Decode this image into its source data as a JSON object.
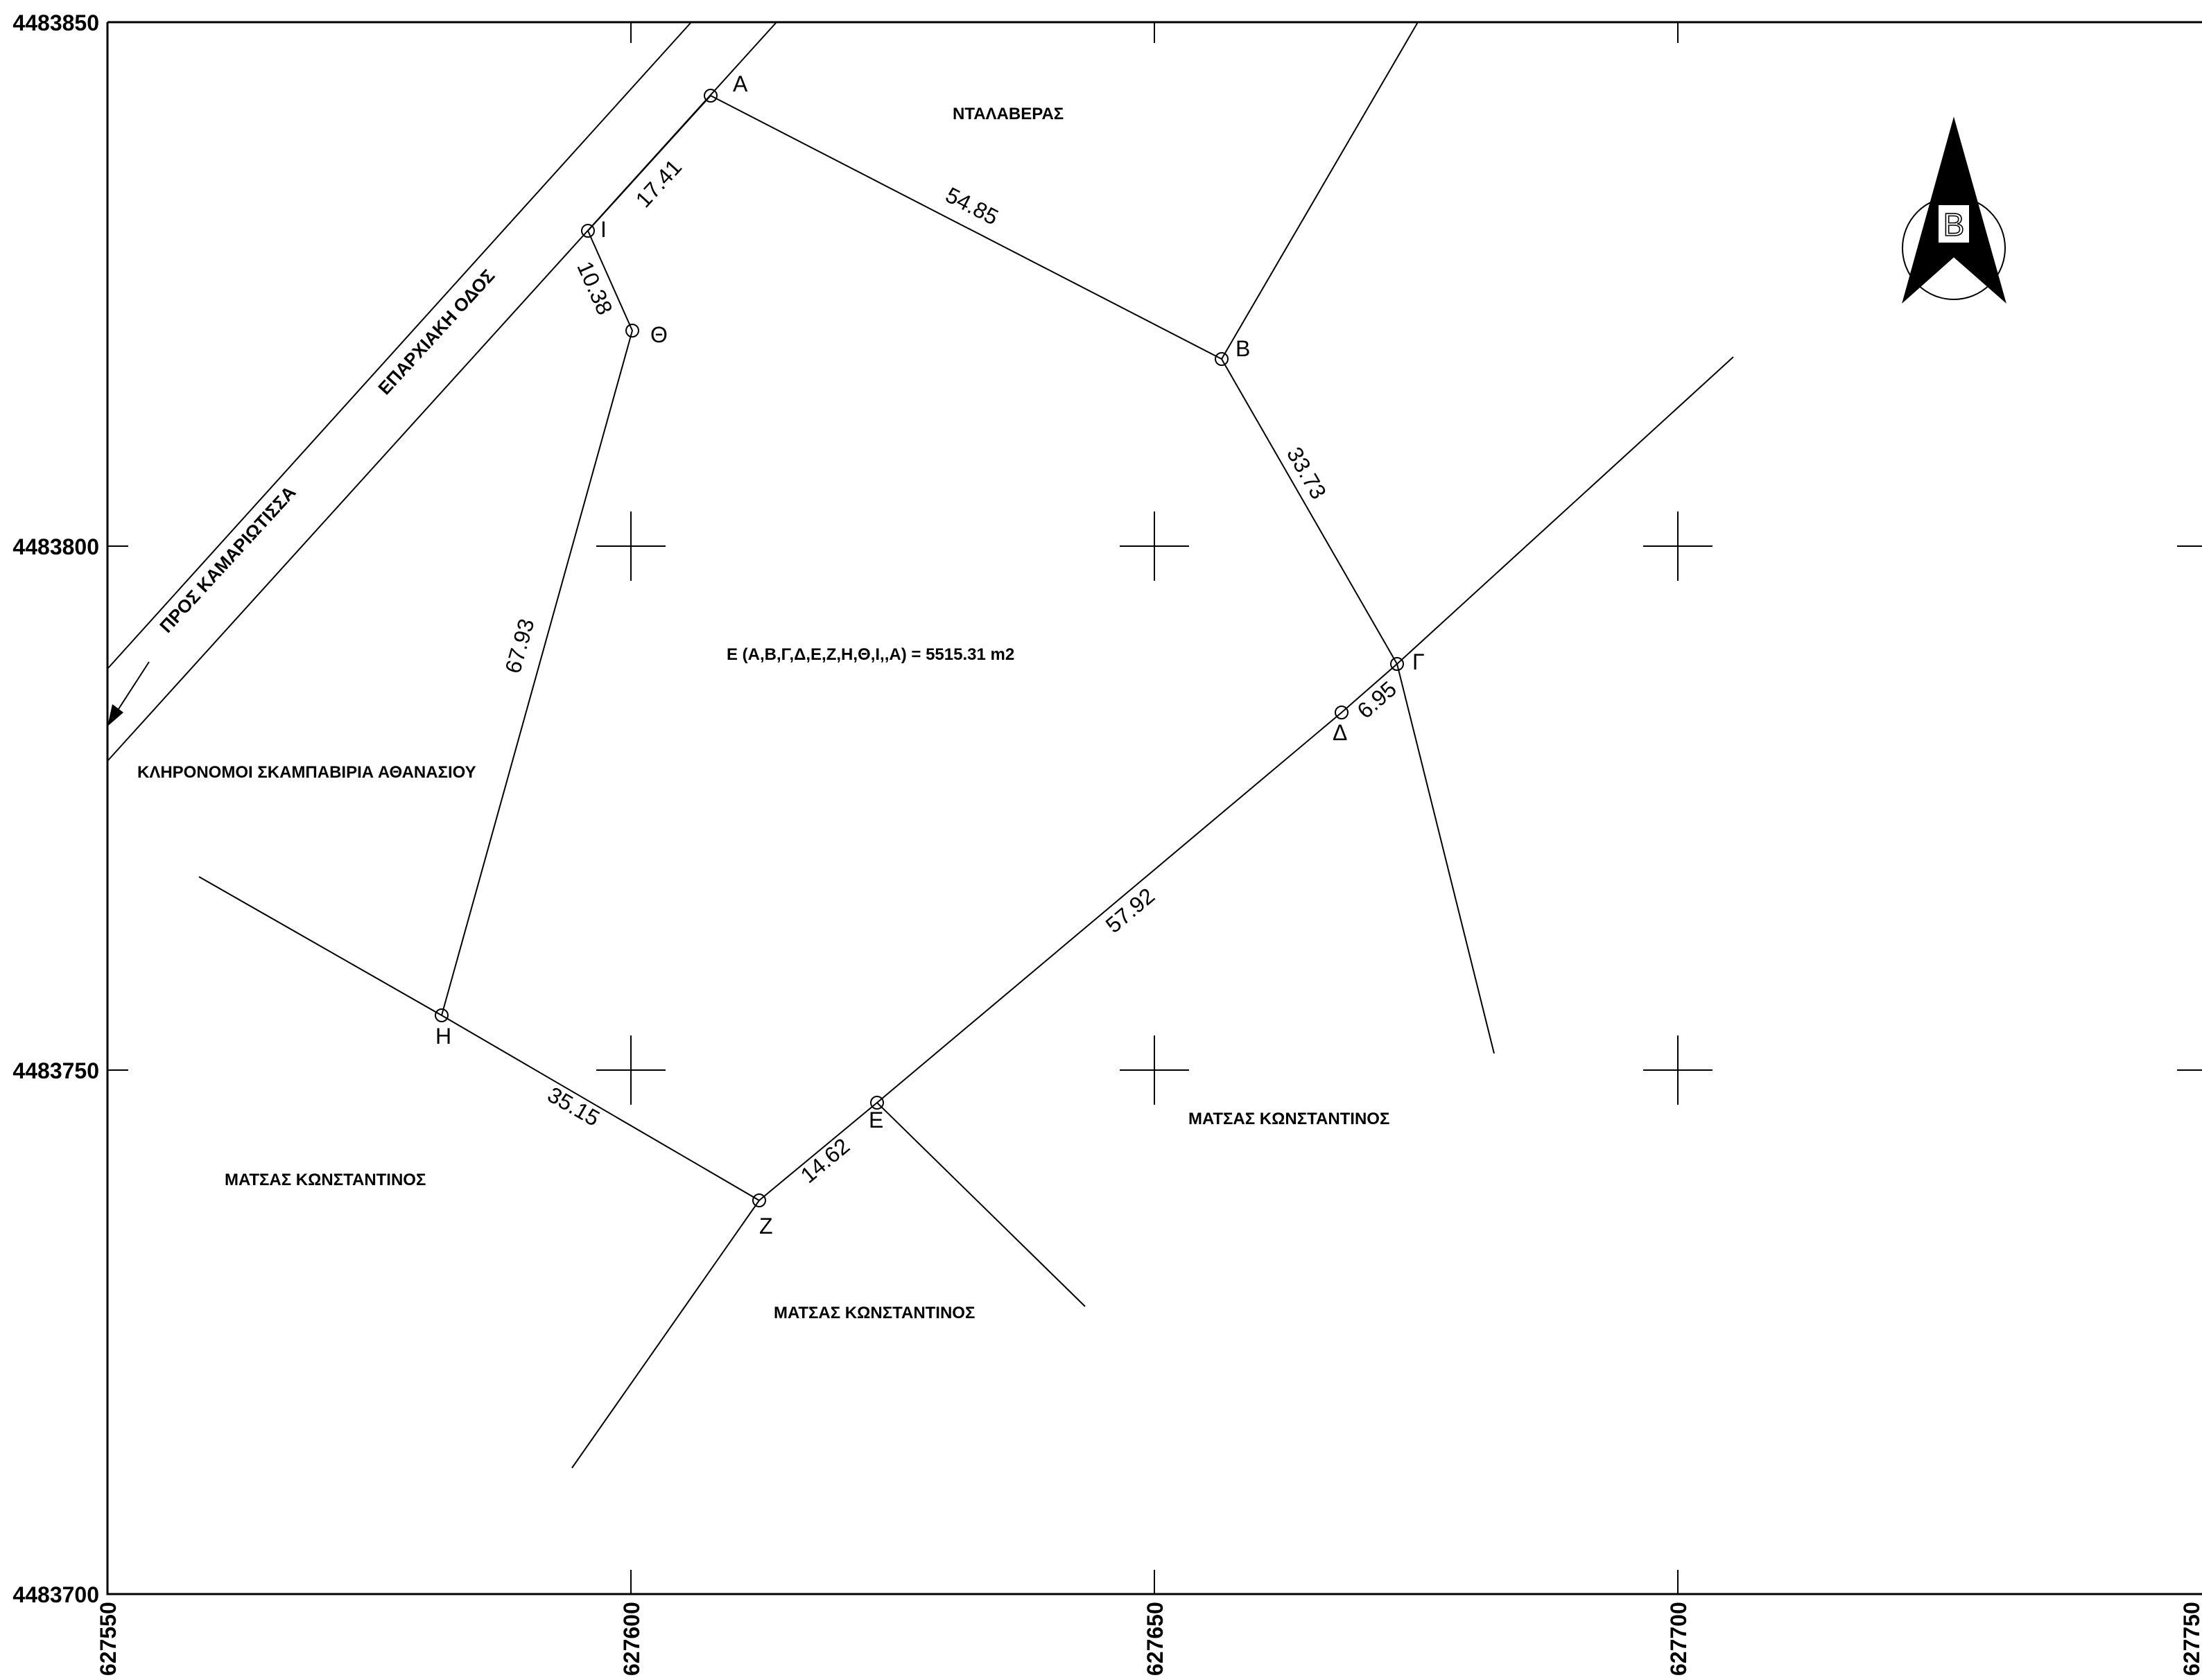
{
  "map": {
    "x_axis_labels": [
      "627550",
      "627600",
      "627650",
      "627700",
      "627750"
    ],
    "y_axis_labels": [
      "4483850",
      "4483800",
      "4483750",
      "4483700"
    ],
    "vertices": [
      {
        "id": "A",
        "label": "Α"
      },
      {
        "id": "I",
        "label": "Ι"
      },
      {
        "id": "TH",
        "label": "Θ"
      },
      {
        "id": "B",
        "label": "Β"
      },
      {
        "id": "G",
        "label": "Γ"
      },
      {
        "id": "D",
        "label": "Δ"
      },
      {
        "id": "E",
        "label": "Ε"
      },
      {
        "id": "Z",
        "label": "Ζ"
      },
      {
        "id": "H",
        "label": "Η"
      }
    ],
    "distances": {
      "AB": "54.85",
      "BG": "33.73",
      "GD": "6.95",
      "DE": "57.92",
      "EZ": "14.62",
      "ZH": "35.15",
      "HTH": "67.93",
      "THI": "10.38",
      "IA": "17.41"
    },
    "area_label": "Ε (Α,Β,Γ,Δ,Ε,Ζ,Η,Θ,Ι,,Α) = 5515.31 m2",
    "owners": {
      "north": "ΝΤΑΛΑΒΕΡΑΣ",
      "west": "ΚΛΗΡΟΝΟΜΟΙ ΣΚΑΜΠΑΒΙΡΙΑ ΑΘΑΝΑΣΙΟΥ",
      "southwest": "ΜΑΤΣΑΣ ΚΩΝΣΤΑΝΤΙΝΟΣ",
      "south": "ΜΑΤΣΑΣ ΚΩΝΣΤΑΝΤΙΝΟΣ",
      "southeast": "ΜΑΤΣΑΣ ΚΩΝΣΤΑΝΤΙΝΟΣ"
    },
    "road": {
      "name": "ΕΠΑΡΧΙΑΚΗ ΟΔΟΣ",
      "direction": "ΠΡΟΣ ΚΑΜΑΡΙΩΤΙΣΣΑ"
    },
    "north_arrow_letter": "Β"
  }
}
